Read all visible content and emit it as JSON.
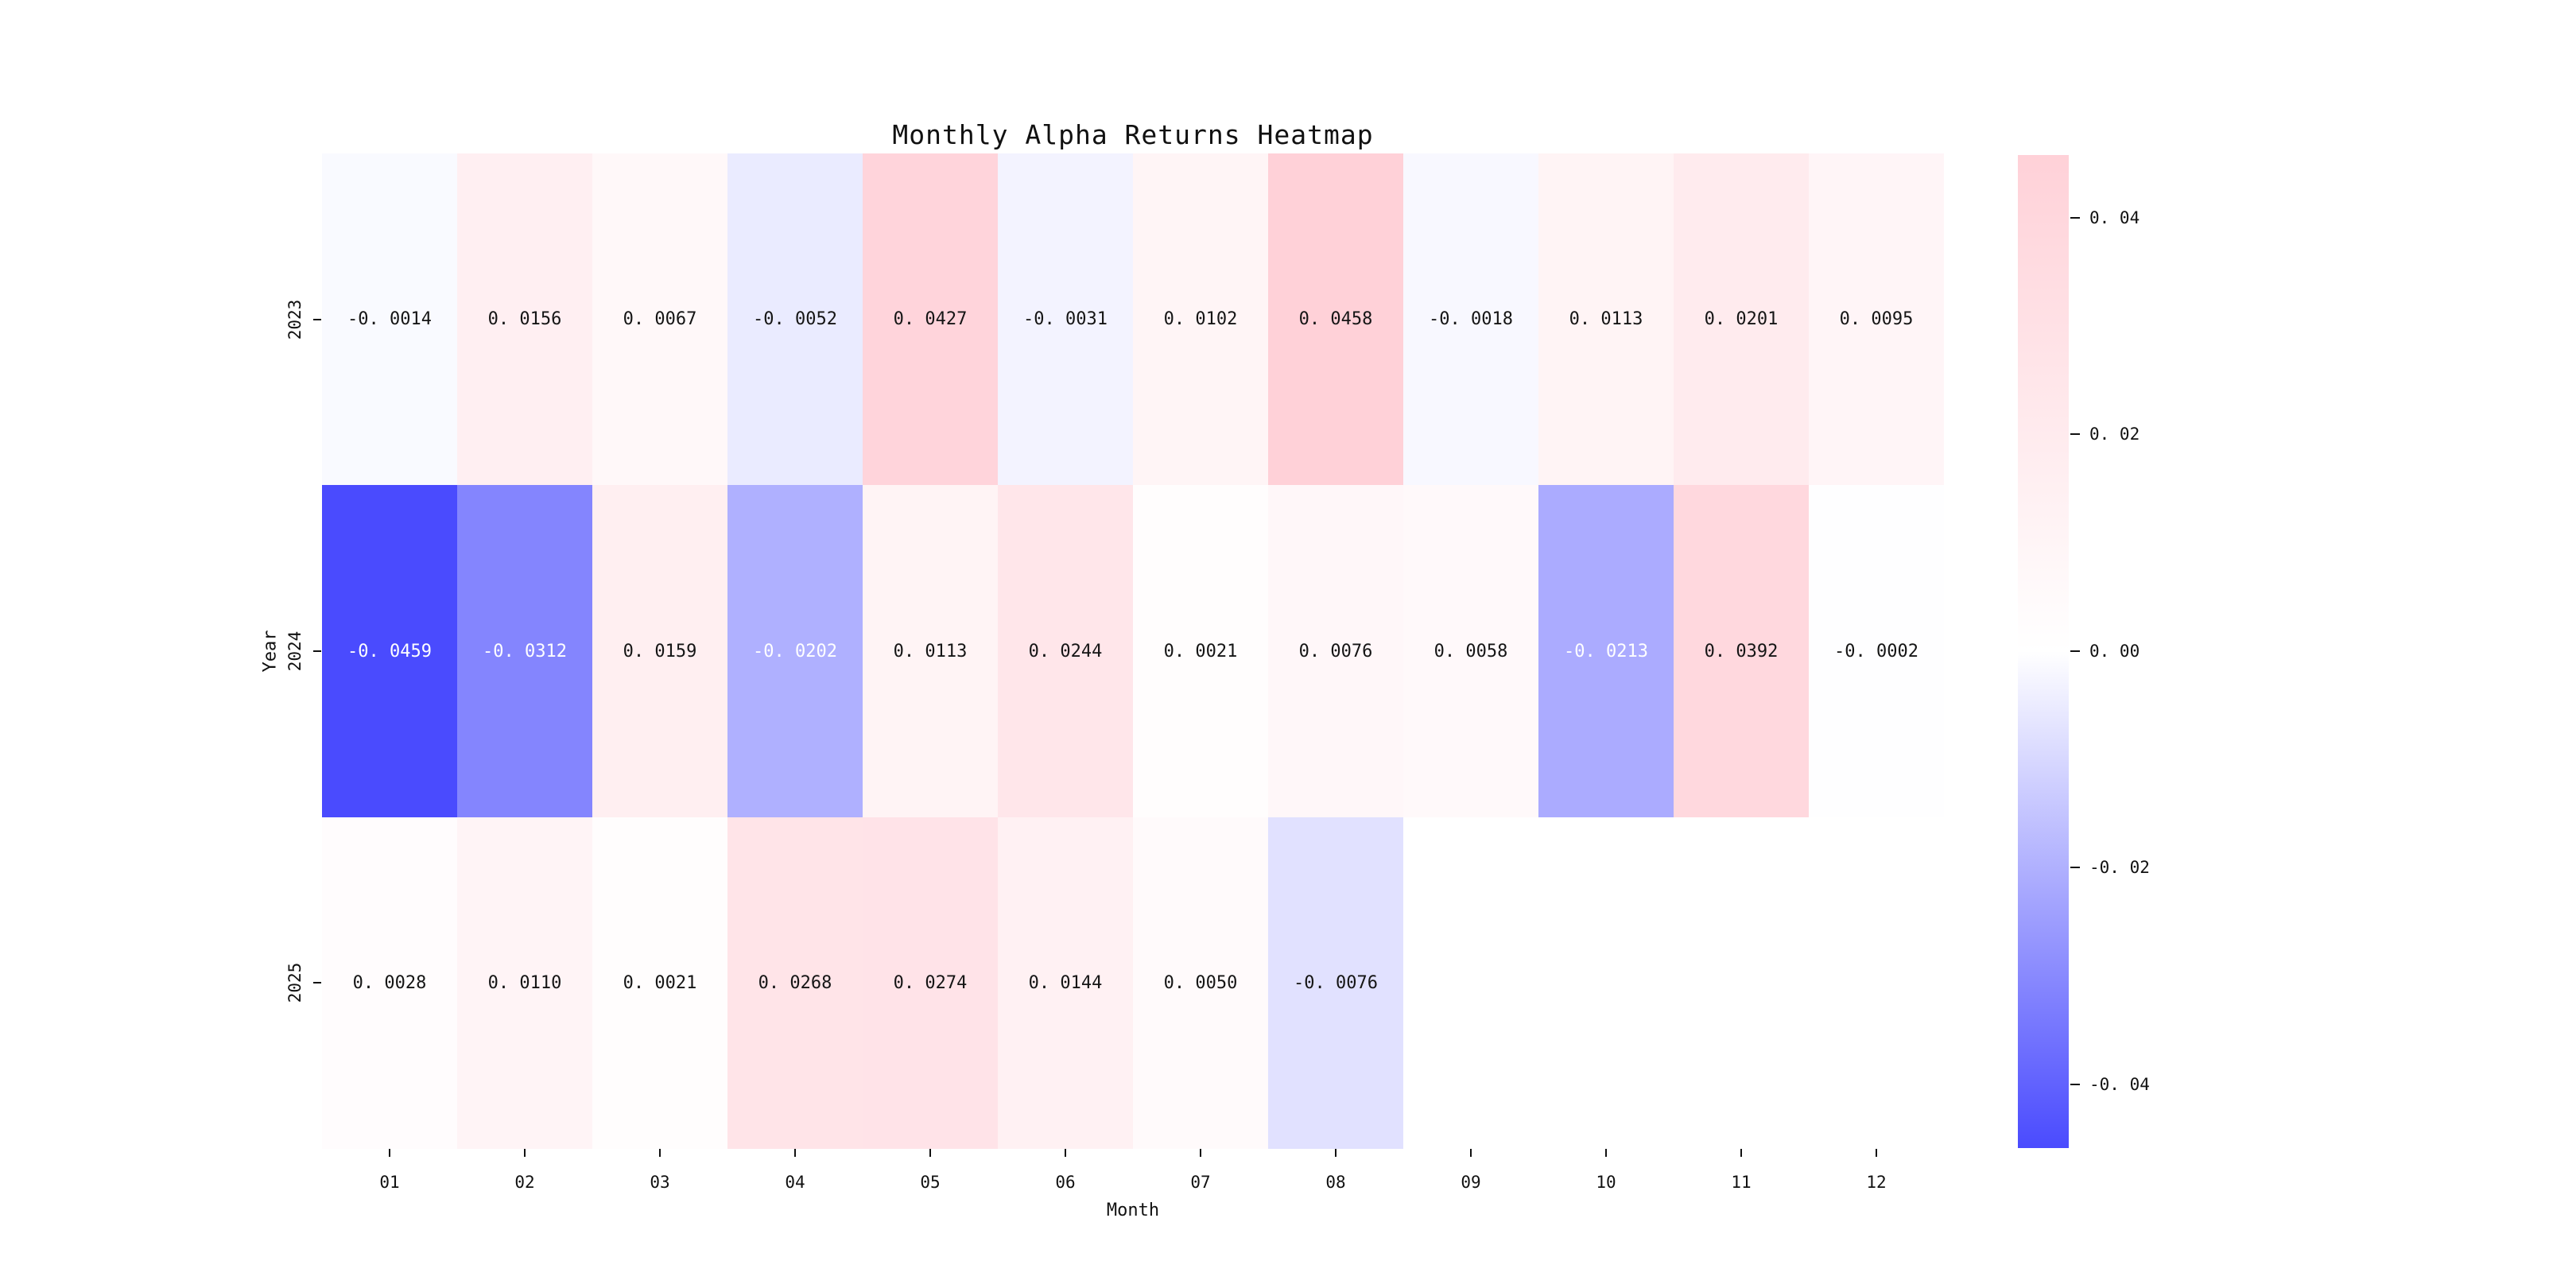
{
  "figure": {
    "background_color": "#ffffff"
  },
  "chart_data": {
    "type": "heatmap",
    "title": "Monthly Alpha Returns Heatmap",
    "xlabel": "Month",
    "ylabel": "Year",
    "x_categories": [
      "01",
      "02",
      "03",
      "04",
      "05",
      "06",
      "07",
      "08",
      "09",
      "10",
      "11",
      "12"
    ],
    "y_categories": [
      "2023",
      "2024",
      "2025"
    ],
    "series": [
      {
        "name": "2023",
        "values": [
          -0.0014,
          0.0156,
          0.0067,
          -0.0052,
          0.0427,
          -0.0031,
          0.0102,
          0.0458,
          -0.0018,
          0.0113,
          0.0201,
          0.0095
        ]
      },
      {
        "name": "2024",
        "values": [
          -0.0459,
          -0.0312,
          0.0159,
          -0.0202,
          0.0113,
          0.0244,
          0.0021,
          0.0076,
          0.0058,
          -0.0213,
          0.0392,
          -0.0002
        ]
      },
      {
        "name": "2025",
        "values": [
          0.0028,
          0.011,
          0.0021,
          0.0268,
          0.0274,
          0.0144,
          0.005,
          -0.0076,
          null,
          null,
          null,
          null
        ]
      }
    ],
    "annotations_on": true,
    "annotation_decimals": 4,
    "grid": false,
    "legend": null,
    "color_scale": {
      "type": "diverging",
      "vmin": -0.0459,
      "vmax": 0.0458,
      "negative_end_color": "#4A4BFE",
      "zero_color": "#FFFFFF",
      "positive_end_color": "#FFD1D8",
      "missing_color": "#FFFFFF",
      "dark_text_color": "#151515",
      "light_text_color": "#FFFFFF"
    },
    "colorbar": {
      "position": "right",
      "ticks": [
        0.04,
        0.02,
        0.0,
        -0.02,
        -0.04
      ],
      "tick_decimals": 2
    }
  }
}
